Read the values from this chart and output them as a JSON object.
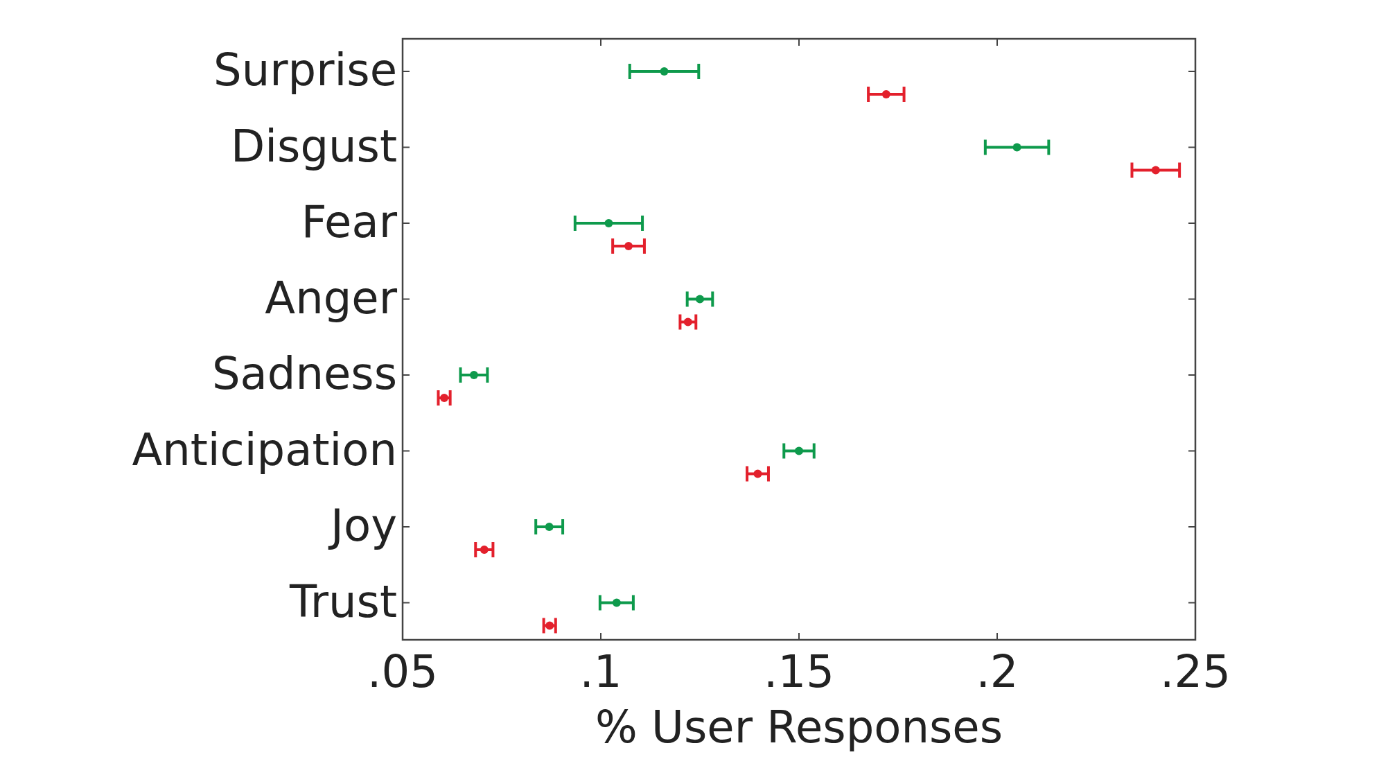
{
  "chart_data": {
    "type": "scatter",
    "orientation": "horizontal",
    "xlabel": "% User Responses",
    "categories": [
      "Surprise",
      "Disgust",
      "Fear",
      "Anger",
      "Sadness",
      "Anticipation",
      "Joy",
      "Trust"
    ],
    "xlim": [
      0.05,
      0.25
    ],
    "xticks": [
      {
        "value": 0.05,
        "label": ".05"
      },
      {
        "value": 0.1,
        "label": ".1"
      },
      {
        "value": 0.15,
        "label": ".15"
      },
      {
        "value": 0.2,
        "label": ".2"
      },
      {
        "value": 0.25,
        "label": ".25"
      }
    ],
    "marker": "circle",
    "grid": false,
    "series": [
      {
        "color": "#0e9a4c",
        "values": [
          0.116,
          0.205,
          0.102,
          0.125,
          0.068,
          0.15,
          0.087,
          0.104
        ],
        "errors": [
          0.0087,
          0.008,
          0.0085,
          0.0032,
          0.0034,
          0.0038,
          0.0034,
          0.0042
        ]
      },
      {
        "color": "#e3202c",
        "values": [
          0.172,
          0.24,
          0.107,
          0.122,
          0.0605,
          0.1396,
          0.0706,
          0.0871
        ],
        "errors": [
          0.0045,
          0.006,
          0.004,
          0.002,
          0.0015,
          0.0027,
          0.0022,
          0.0015
        ]
      }
    ]
  }
}
